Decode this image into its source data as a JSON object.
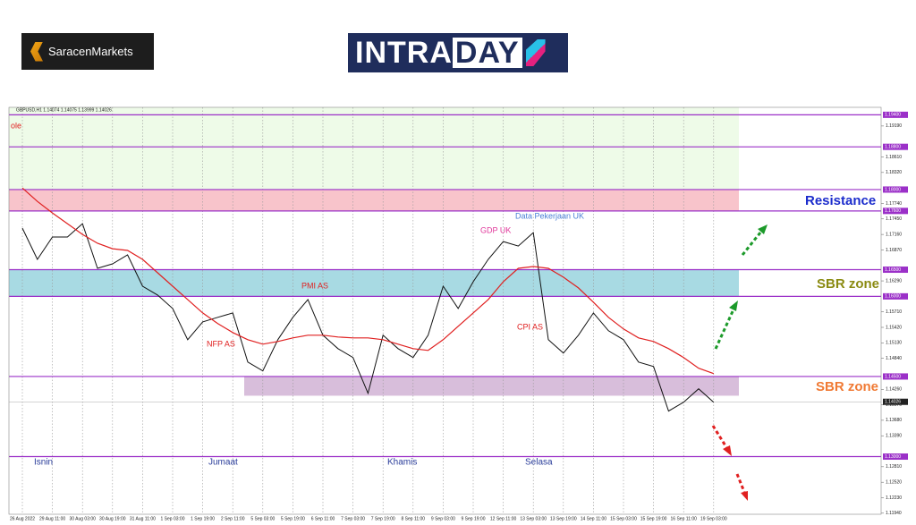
{
  "header": {
    "brand": "SaracenMarkets",
    "intra": "INTRA",
    "day": "DAY"
  },
  "chart_data": {
    "type": "line",
    "symbol_text": "GBPUSD,H1  1.14074 1.14075 1.13999 1.14026",
    "categories": [
      "26 Aug 2022",
      null,
      "29 Aug 11:00",
      null,
      "30 Aug 03:00",
      null,
      "30 Aug 19:00",
      null,
      "31 Aug 11:00",
      null,
      "1 Sep 03:00",
      null,
      "1 Sep 19:00",
      null,
      "2 Sep 11:00",
      null,
      "5 Sep 03:00",
      null,
      "5 Sep 19:00",
      null,
      "6 Sep 11:00",
      null,
      "7 Sep 03:00",
      null,
      "7 Sep 19:00",
      null,
      "8 Sep 11:00",
      null,
      "9 Sep 03:00",
      null,
      "9 Sep 19:00",
      null,
      "12 Sep 11:00",
      null,
      "13 Sep 03:00",
      null,
      "13 Sep 19:00",
      null,
      "14 Sep 11:00",
      null,
      "15 Sep 03:00",
      null,
      "15 Sep 19:00",
      null,
      "16 Sep 11:00",
      null,
      "19 Sep 03:00"
    ],
    "series": [
      {
        "name": "GBPUSD",
        "color": "#111111",
        "values": [
          1.17278,
          1.16693,
          1.17111,
          1.17111,
          1.17361,
          1.16526,
          1.16609,
          1.16776,
          1.16191,
          1.16024,
          1.15774,
          1.15189,
          1.15523,
          1.15607,
          1.1569,
          1.14771,
          1.14604,
          1.15189,
          1.15607,
          1.15941,
          1.15272,
          1.15022,
          1.14855,
          1.14186,
          1.15272,
          1.15022,
          1.14855,
          1.15272,
          1.16191,
          1.15774,
          1.16275,
          1.16693,
          1.17027,
          1.16943,
          1.17194,
          1.15189,
          1.14938,
          1.15272,
          1.1569,
          1.15356,
          1.15189,
          1.14771,
          1.14687,
          1.13852,
          1.14019,
          1.1427,
          1.14019
        ]
      },
      {
        "name": "MA",
        "color": "#e02020",
        "values": [
          1.1803,
          1.17779,
          1.17562,
          1.17361,
          1.17161,
          1.16994,
          1.16893,
          1.1686,
          1.16693,
          1.16442,
          1.16191,
          1.15941,
          1.1569,
          1.1549,
          1.15323,
          1.15189,
          1.15105,
          1.15155,
          1.15222,
          1.15272,
          1.15272,
          1.15239,
          1.15222,
          1.15222,
          1.15189,
          1.15105,
          1.15022,
          1.14988,
          1.15189,
          1.1544,
          1.1569,
          1.15941,
          1.16275,
          1.16526,
          1.16559,
          1.16526,
          1.16359,
          1.16158,
          1.15891,
          1.15607,
          1.1539,
          1.15222,
          1.15155,
          1.15022,
          1.14855,
          1.14654,
          1.14554
        ]
      }
    ],
    "ylim": [
      1.1192,
      1.1954
    ],
    "yticks": [
      {
        "value": 1.1194,
        "label": "1.11940"
      },
      {
        "value": 1.1223,
        "label": "1.12230"
      },
      {
        "value": 1.1252,
        "label": "1.12520"
      },
      {
        "value": 1.1281,
        "label": "1.12810"
      },
      {
        "value": 1.1339,
        "label": "1.13390"
      },
      {
        "value": 1.1368,
        "label": "1.13680"
      },
      {
        "value": 1.1397,
        "label": "1.13970"
      },
      {
        "value": 1.1426,
        "label": "1.14260"
      },
      {
        "value": 1.1484,
        "label": "1.14840"
      },
      {
        "value": 1.1513,
        "label": "1.15130"
      },
      {
        "value": 1.1542,
        "label": "1.15420"
      },
      {
        "value": 1.1571,
        "label": "1.15710"
      },
      {
        "value": 1.1629,
        "label": "1.16290"
      },
      {
        "value": 1.1687,
        "label": "1.16870"
      },
      {
        "value": 1.1716,
        "label": "1.17160"
      },
      {
        "value": 1.1745,
        "label": "1.17450"
      },
      {
        "value": 1.1774,
        "label": "1.17740"
      },
      {
        "value": 1.1832,
        "label": "1.18320"
      },
      {
        "value": 1.1861,
        "label": "1.18610"
      },
      {
        "value": 1.1919,
        "label": "1.19190"
      }
    ],
    "levels": [
      {
        "value": 1.194,
        "label": "1.19400"
      },
      {
        "value": 1.188,
        "label": "1.18800"
      },
      {
        "value": 1.18,
        "label": "1.18000"
      },
      {
        "value": 1.176,
        "label": "1.17600"
      },
      {
        "value": 1.165,
        "label": "1.16500"
      },
      {
        "value": 1.16,
        "label": "1.16000"
      },
      {
        "value": 1.145,
        "label": "1.14500"
      },
      {
        "value": 1.13,
        "label": "1.13000"
      }
    ],
    "level_color": "#9b30c8",
    "zones": [
      {
        "from": 1.18,
        "to": 1.1954,
        "color": "#eefbe8"
      },
      {
        "from": 1.176,
        "to": 1.18,
        "color": "#f8c4cb"
      },
      {
        "from": 1.16,
        "to": 1.165,
        "color": "#a8dae3"
      },
      {
        "from": 1.1414,
        "to": 1.145,
        "color": "#d8bedb"
      }
    ],
    "last_price": {
      "value": 1.14026,
      "label": "1.14026"
    },
    "events": [
      "ole",
      "GDP UK",
      "Data Pekerjaan UK",
      "PMI AS",
      "NFP AS",
      "CPI AS"
    ],
    "days": [
      "Isnin",
      "Jumaat",
      "Khamis",
      "Selasa"
    ],
    "zone_labels": [
      "Resistance",
      "SBR zone",
      "SBR zone"
    ]
  }
}
